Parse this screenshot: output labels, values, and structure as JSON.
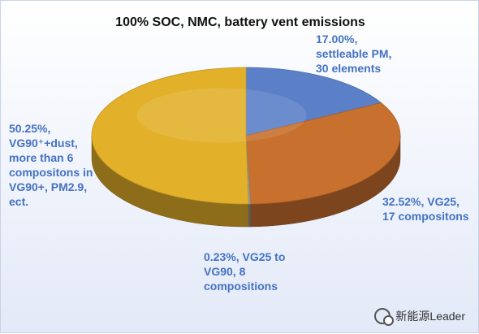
{
  "chart_data": {
    "type": "pie",
    "title": "100% SOC, NMC, battery vent emissions",
    "slices": [
      {
        "label_lines": [
          "17.00%,",
          "settleable PM,",
          "30 elements"
        ],
        "value": 17.0,
        "color": "#5b80c8"
      },
      {
        "label_lines": [
          "32.52%, VG25,",
          "17 compositons"
        ],
        "value": 32.52,
        "color": "#c8702e"
      },
      {
        "label_lines": [
          "0.23%, VG25 to",
          "VG90, 8",
          "compositions"
        ],
        "value": 0.23,
        "color": "#9a9a9a"
      },
      {
        "label_lines": [
          "50.25%,",
          "VG90⁺+dust,",
          "more than 6",
          "compositons in",
          "VG90+, PM2.9,",
          "ect."
        ],
        "value": 50.25,
        "color": "#e3b02a"
      }
    ]
  },
  "watermark": {
    "icon": "wechat-icon",
    "text": "新能源Leader"
  }
}
